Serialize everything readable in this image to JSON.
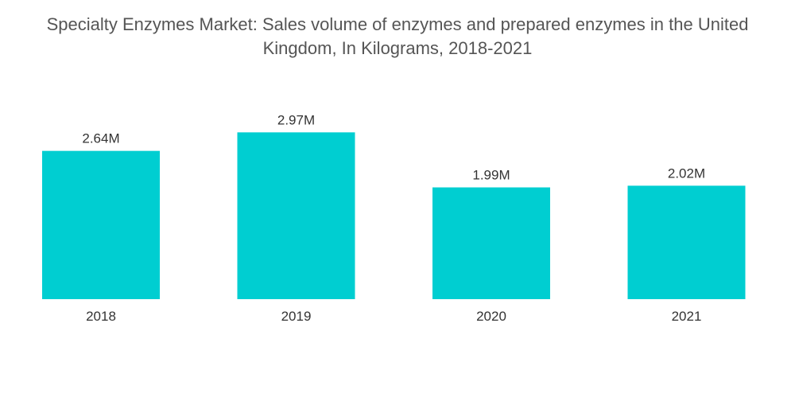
{
  "chart_data": {
    "type": "bar",
    "title": "Specialty Enzymes Market: Sales volume of enzymes and prepared enzymes in the United Kingdom, In Kilograms, 2018-2021",
    "title_lines": [
      "Specialty Enzymes Market: Sales volume of enzymes and prepared enzymes in the United",
      "Kingdom, In Kilograms, 2018-2021"
    ],
    "categories": [
      "2018",
      "2019",
      "2020",
      "2021"
    ],
    "values": [
      2.64,
      2.97,
      1.99,
      2.02
    ],
    "value_labels": [
      "2.64M",
      "2.97M",
      "1.99M",
      "2.02M"
    ],
    "unit_multiplier": 1000000,
    "xlabel": "",
    "ylabel": "",
    "ylim": [
      0,
      3.4
    ],
    "grid": false,
    "legend": "none",
    "bar_color": "#00CED1"
  }
}
